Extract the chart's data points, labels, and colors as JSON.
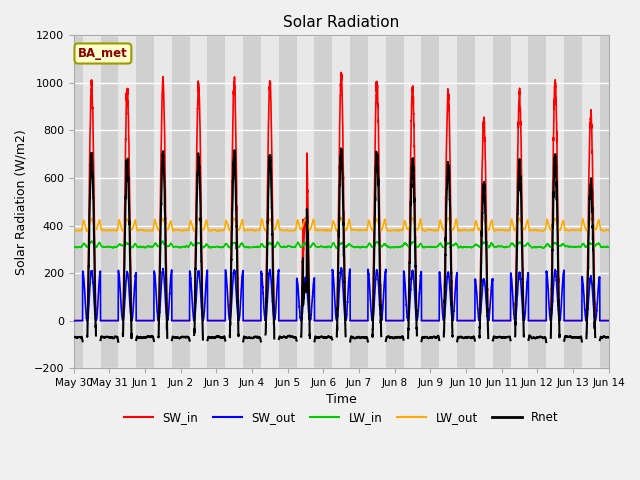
{
  "title": "Solar Radiation",
  "ylabel": "Solar Radiation (W/m2)",
  "xlabel": "Time",
  "ylim": [
    -200,
    1200
  ],
  "tick_labels": [
    "May 30",
    "May 31",
    "Jun 1",
    "Jun 2",
    "Jun 3",
    "Jun 4",
    "Jun 5",
    "Jun 6",
    "Jun 7",
    "Jun 8",
    "Jun 9",
    "Jun 10",
    "Jun 11",
    "Jun 12",
    "Jun 13",
    "Jun 14"
  ],
  "colors": {
    "SW_in": "#ff0000",
    "SW_out": "#0000ff",
    "LW_in": "#00cc00",
    "LW_out": "#ffaa00",
    "Rnet": "#000000"
  },
  "linewidths": {
    "SW_in": 1.2,
    "SW_out": 1.2,
    "LW_in": 1.2,
    "LW_out": 1.2,
    "Rnet": 1.5
  },
  "legend_label": "BA_met",
  "background_color": "#f0f0f0",
  "plot_bg_color": "#e8e8e8",
  "night_band_color": "#d0d0d0",
  "day_band_color": "#e8e8e8",
  "grid_color": "#ffffff"
}
